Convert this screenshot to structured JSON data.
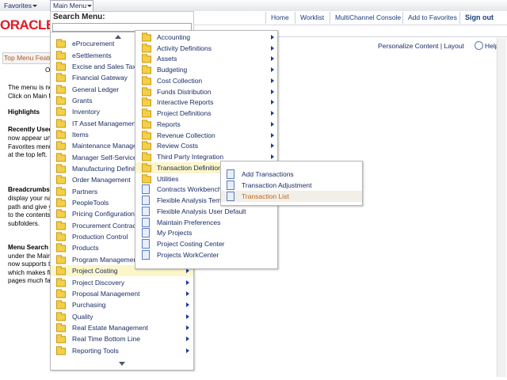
{
  "top_bar": {
    "favorites": "Favorites",
    "main_menu": "Main Menu"
  },
  "header": {
    "logo": "ORACLE",
    "links": [
      "Home",
      "Worklist",
      "MultiChannel Console",
      "Add to Favorites",
      "Sign out"
    ]
  },
  "search": {
    "label": "Search Menu:"
  },
  "page": {
    "pagelet_title": "Top Menu Featu",
    "personalize": "Personalize Content | Layout",
    "help": "Help",
    "lines": [
      "O",
      "The menu is no",
      "Click on Main M",
      "Highlights",
      "Recently Used",
      "now appear un",
      "Favorites menu",
      "at the top left.",
      "Breadcrumbs",
      "display your na",
      "path and give y",
      "to the contents",
      "subfolders.",
      "Menu Search",
      "under the Main",
      "now supports t",
      "which makes fi",
      "pages much fa"
    ]
  },
  "menus": [
    {
      "folders": [
        "eProcurement",
        "eSettlements",
        "Excise and Sales Tax/V",
        "Financial Gateway",
        "General Ledger",
        "Grants",
        "Inventory",
        "IT Asset Management",
        "Items",
        "Maintenance Managem",
        "Manager Self-Service",
        "Manufacturing Definitio",
        "Order Management",
        "Partners",
        "PeopleTools",
        "Pricing Configuration",
        "Procurement Contracts",
        "Production Control",
        "Products",
        "Program Management",
        "Project Costing",
        "Project Discovery",
        "Proposal Management",
        "Purchasing",
        "Quality",
        "Real Estate Management",
        "Real Time Bottom Line",
        "Reporting Tools"
      ],
      "pages": [],
      "selected": 20
    },
    {
      "folders": [
        "Accounting",
        "Activity Definitions",
        "Assets",
        "Budgeting",
        "Cost Collection",
        "Funds Distribution",
        "Interactive Reports",
        "Project Definitions",
        "Reports",
        "Revenue Collection",
        "Review Costs",
        "Third Party Integration",
        "Transaction Definitions",
        "Utilities"
      ],
      "pages": [
        "Contracts Workbench",
        "Flexible Analysis Temp",
        "Flexible Analysis User Default",
        "Maintain Preferences",
        "My Projects",
        "Project Costing Center",
        "Projects WorkCenter"
      ],
      "selected": 12
    },
    {
      "folders": [],
      "pages": [
        "Add Transactions",
        "Transaction Adjustment",
        "Transaction List"
      ],
      "selected": 2
    }
  ]
}
